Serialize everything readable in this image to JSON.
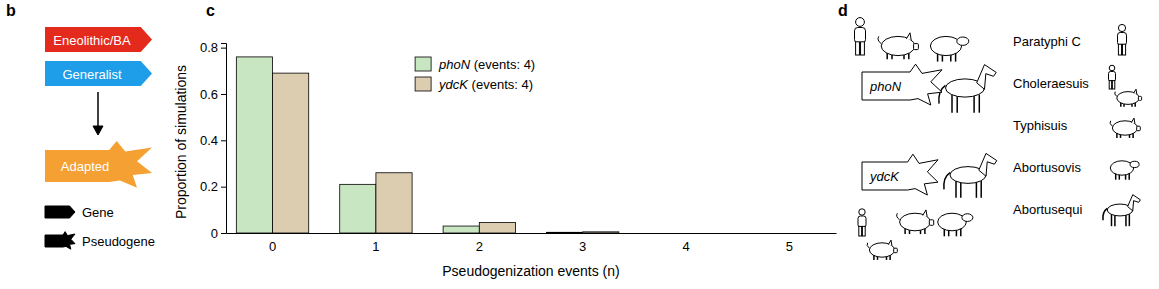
{
  "panel_labels": [
    "b",
    "c",
    "d"
  ],
  "diagram_b": {
    "boxes": [
      {
        "label": "Eneolithic/BA",
        "color": "#e42a1d",
        "shape": "gene"
      },
      {
        "label": "Generalist",
        "color": "#1e9ee8",
        "shape": "gene"
      },
      {
        "label": "Adapted",
        "color": "#f5a032",
        "shape": "pseudogene"
      }
    ],
    "legend": [
      {
        "label": "Gene",
        "shape": "gene"
      },
      {
        "label": "Pseudogene",
        "shape": "pseudogene"
      }
    ]
  },
  "chart_data": {
    "type": "bar",
    "categories": [
      "0",
      "1",
      "2",
      "3",
      "4",
      "5"
    ],
    "x_label": "Pseudogenization events (n)",
    "y_label": "Proportion of simulations",
    "ylim": [
      0,
      0.82
    ],
    "yticks": [
      0,
      0.2,
      0.4,
      0.6,
      0.8
    ],
    "legend": "top",
    "series": [
      {
        "name": "phoN (events: 4)",
        "color": "#c8e6c1",
        "values": [
          0.76,
          0.21,
          0.03,
          0.003,
          0,
          0
        ]
      },
      {
        "name": "ydcK (events: 4)",
        "color": "#dccdb1",
        "values": [
          0.69,
          0.26,
          0.045,
          0.005,
          0,
          0
        ]
      }
    ]
  },
  "diagram_d": {
    "genes": [
      "phoN",
      "ydcK"
    ],
    "serovars": [
      "Paratyphi C",
      "Choleraesuis",
      "Typhisuis",
      "Abortusovis",
      "Abortusequi"
    ]
  }
}
